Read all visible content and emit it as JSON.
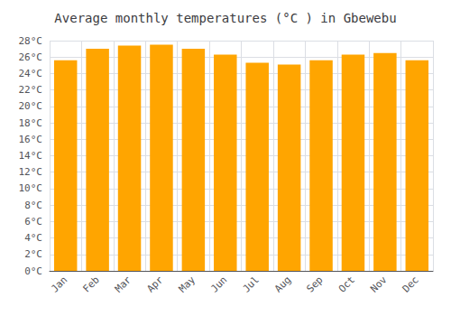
{
  "chart_data": {
    "type": "bar",
    "title": "Average monthly temperatures (°C ) in Gbewebu",
    "categories": [
      "Jan",
      "Feb",
      "Mar",
      "Apr",
      "May",
      "Jun",
      "Jul",
      "Aug",
      "Sep",
      "Oct",
      "Nov",
      "Dec"
    ],
    "values": [
      25.6,
      27.0,
      27.4,
      27.5,
      27.0,
      26.3,
      25.3,
      25.1,
      25.6,
      26.3,
      26.5,
      25.6
    ],
    "color": "#FFA500",
    "ylim": [
      0,
      28
    ],
    "yticks": [
      {
        "value": 0,
        "label": "0°C"
      },
      {
        "value": 2,
        "label": "2°C"
      },
      {
        "value": 4,
        "label": "4°C"
      },
      {
        "value": 6,
        "label": "6°C"
      },
      {
        "value": 8,
        "label": "8°C"
      },
      {
        "value": 10,
        "label": "10°C"
      },
      {
        "value": 12,
        "label": "12°C"
      },
      {
        "value": 14,
        "label": "14°C"
      },
      {
        "value": 16,
        "label": "16°C"
      },
      {
        "value": 18,
        "label": "18°C"
      },
      {
        "value": 20,
        "label": "20°C"
      },
      {
        "value": 22,
        "label": "22°C"
      },
      {
        "value": 24,
        "label": "24°C"
      },
      {
        "value": 26,
        "label": "26°C"
      },
      {
        "value": 28,
        "label": "28°C"
      }
    ],
    "grid": true
  }
}
